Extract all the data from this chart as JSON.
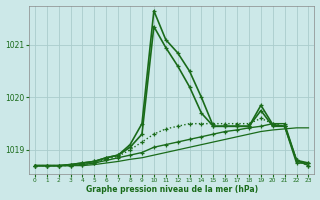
{
  "title": "Graphe pression niveau de la mer (hPa)",
  "bg_color": "#cce8e8",
  "grid_color": "#aacccc",
  "line_color": "#1a6b1a",
  "xlim": [
    -0.5,
    23.5
  ],
  "ylim": [
    1018.55,
    1021.75
  ],
  "yticks": [
    1019,
    1020,
    1021
  ],
  "xticks": [
    0,
    1,
    2,
    3,
    4,
    5,
    6,
    7,
    8,
    9,
    10,
    11,
    12,
    13,
    14,
    15,
    16,
    17,
    18,
    19,
    20,
    21,
    22,
    23
  ],
  "series": [
    {
      "x": [
        0,
        1,
        2,
        3,
        4,
        5,
        6,
        7,
        8,
        9,
        10,
        11,
        12,
        13,
        14,
        15,
        16,
        17,
        18,
        19,
        20,
        21,
        22,
        23
      ],
      "y": [
        1018.7,
        1018.7,
        1018.7,
        1018.7,
        1018.7,
        1018.72,
        1018.75,
        1018.78,
        1018.82,
        1018.85,
        1018.9,
        1018.95,
        1019.0,
        1019.05,
        1019.1,
        1019.15,
        1019.2,
        1019.25,
        1019.3,
        1019.35,
        1019.38,
        1019.4,
        1019.42,
        1019.42
      ],
      "style": "solid",
      "marker": null,
      "lw": 0.9
    },
    {
      "x": [
        0,
        1,
        2,
        3,
        4,
        5,
        6,
        7,
        8,
        9,
        10,
        11,
        12,
        13,
        14,
        15,
        16,
        17,
        18,
        19,
        20,
        21,
        22,
        23
      ],
      "y": [
        1018.7,
        1018.7,
        1018.7,
        1018.7,
        1018.72,
        1018.75,
        1018.8,
        1018.85,
        1018.9,
        1018.95,
        1019.05,
        1019.1,
        1019.15,
        1019.2,
        1019.25,
        1019.3,
        1019.35,
        1019.38,
        1019.42,
        1019.45,
        1019.5,
        1019.5,
        1018.8,
        1018.7
      ],
      "style": "solid",
      "marker": "+",
      "lw": 1.0
    },
    {
      "x": [
        0,
        1,
        2,
        3,
        4,
        5,
        6,
        7,
        8,
        9,
        10,
        11,
        12,
        13,
        14,
        15,
        16,
        17,
        18,
        19,
        20,
        21,
        22,
        23
      ],
      "y": [
        1018.7,
        1018.7,
        1018.7,
        1018.7,
        1018.72,
        1018.75,
        1018.82,
        1018.88,
        1019.0,
        1019.15,
        1019.3,
        1019.4,
        1019.45,
        1019.5,
        1019.5,
        1019.5,
        1019.5,
        1019.5,
        1019.5,
        1019.6,
        1019.5,
        1019.45,
        1018.8,
        1018.7
      ],
      "style": "dotted",
      "marker": "+",
      "lw": 1.0
    },
    {
      "x": [
        0,
        1,
        2,
        3,
        4,
        5,
        6,
        7,
        8,
        9,
        10,
        11,
        12,
        13,
        14,
        15,
        16,
        17,
        18,
        19,
        20,
        21,
        22,
        23
      ],
      "y": [
        1018.7,
        1018.7,
        1018.7,
        1018.72,
        1018.75,
        1018.78,
        1018.85,
        1018.9,
        1019.1,
        1019.5,
        1021.65,
        1021.1,
        1020.85,
        1020.5,
        1020.0,
        1019.45,
        1019.45,
        1019.45,
        1019.45,
        1019.85,
        1019.48,
        1019.45,
        1018.8,
        1018.75
      ],
      "style": "solid",
      "marker": "+",
      "lw": 1.2
    },
    {
      "x": [
        0,
        1,
        2,
        3,
        4,
        5,
        6,
        7,
        8,
        9,
        10,
        11,
        12,
        13,
        14,
        15,
        16,
        17,
        18,
        19,
        20,
        21,
        22,
        23
      ],
      "y": [
        1018.7,
        1018.7,
        1018.7,
        1018.72,
        1018.75,
        1018.78,
        1018.85,
        1018.9,
        1019.05,
        1019.3,
        1021.35,
        1020.95,
        1020.6,
        1020.2,
        1019.7,
        1019.45,
        1019.45,
        1019.45,
        1019.45,
        1019.75,
        1019.45,
        1019.45,
        1018.75,
        1018.75
      ],
      "style": "solid",
      "marker": "+",
      "lw": 1.2
    }
  ]
}
